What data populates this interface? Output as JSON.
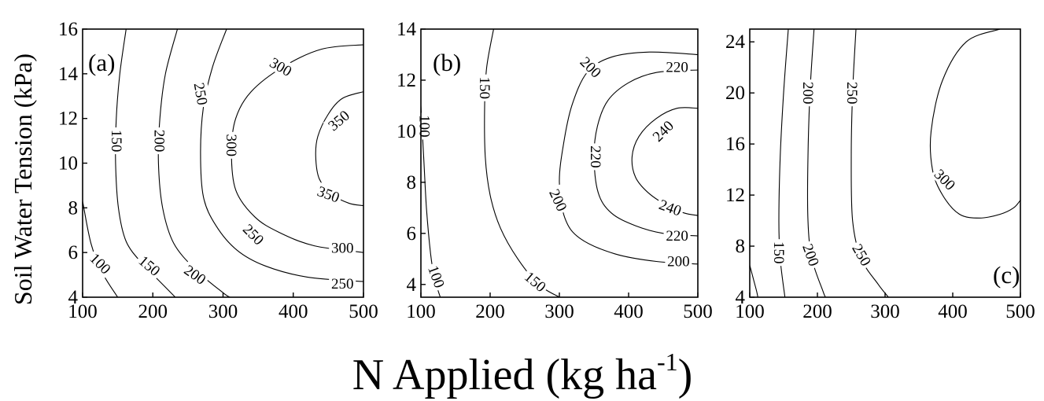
{
  "chart_data": {
    "type": "contour",
    "xlabel": "N Applied (kg ha",
    "xlabel_superscript": "-1",
    "xlabel_close": ")",
    "ylabel": "Soil Water Tension (kPa)",
    "panels": [
      {
        "panel_label": "(a)",
        "xlim": [
          100,
          500
        ],
        "ylim": [
          4,
          16
        ],
        "xticks": [
          100,
          200,
          300,
          400,
          500
        ],
        "yticks": [
          4,
          6,
          8,
          10,
          12,
          14,
          16
        ],
        "contours": [
          {
            "level": 100,
            "labels": [
              {
                "text": "100",
                "x": 125,
                "y": 5.5,
                "angle": 45
              }
            ],
            "points": [
              [
                100,
                8.3
              ],
              [
                112,
                6.4
              ],
              [
                128,
                5.1
              ],
              [
                150,
                4.0
              ]
            ]
          },
          {
            "level": 150,
            "labels": [
              {
                "text": "150",
                "x": 148,
                "y": 11.0,
                "angle": 90
              },
              {
                "text": "150",
                "x": 195,
                "y": 5.4,
                "angle": 40
              }
            ],
            "points": [
              [
                162,
                16.0
              ],
              [
                153,
                14.0
              ],
              [
                148,
                12.0
              ],
              [
                147,
                10.0
              ],
              [
                151,
                8.0
              ],
              [
                162,
                6.5
              ],
              [
                185,
                5.5
              ],
              [
                210,
                4.7
              ],
              [
                232,
                4.0
              ]
            ]
          },
          {
            "level": 200,
            "labels": [
              {
                "text": "200",
                "x": 209,
                "y": 11.0,
                "angle": 90
              },
              {
                "text": "200",
                "x": 260,
                "y": 5.0,
                "angle": 35
              }
            ],
            "points": [
              [
                235,
                16.0
              ],
              [
                218,
                14.0
              ],
              [
                210,
                12.0
              ],
              [
                208,
                10.0
              ],
              [
                214,
                8.0
              ],
              [
                230,
                6.4
              ],
              [
                262,
                5.2
              ],
              [
                300,
                4.2
              ],
              [
                310,
                4.0
              ]
            ]
          },
          {
            "level": 250,
            "labels": [
              {
                "text": "250",
                "x": 268,
                "y": 13.1,
                "angle": 80
              },
              {
                "text": "250",
                "x": 343,
                "y": 6.8,
                "angle": 45
              },
              {
                "text": "250",
                "x": 470,
                "y": 4.6,
                "angle": 0
              }
            ],
            "points": [
              [
                305,
                16.0
              ],
              [
                285,
                14.3
              ],
              [
                272,
                12.5
              ],
              [
                268,
                10.5
              ],
              [
                272,
                8.5
              ],
              [
                290,
                7.2
              ],
              [
                320,
                6.1
              ],
              [
                360,
                5.4
              ],
              [
                420,
                4.9
              ],
              [
                500,
                4.7
              ]
            ]
          },
          {
            "level": 300,
            "labels": [
              {
                "text": "300",
                "x": 382,
                "y": 14.3,
                "angle": 30
              },
              {
                "text": "300",
                "x": 312,
                "y": 10.8,
                "angle": 90
              },
              {
                "text": "300",
                "x": 470,
                "y": 6.2,
                "angle": 0
              }
            ],
            "points": [
              [
                500,
                15.3
              ],
              [
                440,
                15.1
              ],
              [
                385,
                14.3
              ],
              [
                340,
                13.2
              ],
              [
                318,
                12.0
              ],
              [
                312,
                10.5
              ],
              [
                318,
                8.8
              ],
              [
                345,
                7.6
              ],
              [
                380,
                6.9
              ],
              [
                430,
                6.3
              ],
              [
                500,
                6.0
              ]
            ]
          },
          {
            "level": 350,
            "labels": [
              {
                "text": "350",
                "x": 465,
                "y": 11.9,
                "angle": -40
              },
              {
                "text": "350",
                "x": 450,
                "y": 8.6,
                "angle": 20
              }
            ],
            "points": [
              [
                500,
                13.2
              ],
              [
                470,
                12.9
              ],
              [
                450,
                12.2
              ],
              [
                435,
                11.2
              ],
              [
                432,
                10.3
              ],
              [
                437,
                9.3
              ],
              [
                455,
                8.6
              ],
              [
                480,
                8.2
              ],
              [
                500,
                8.1
              ]
            ]
          }
        ]
      },
      {
        "panel_label": "(b)",
        "xlim": [
          100,
          500
        ],
        "ylim": [
          3.5,
          14
        ],
        "xticks": [
          100,
          200,
          300,
          400,
          500
        ],
        "yticks": [
          4,
          6,
          8,
          10,
          12,
          14
        ],
        "contours": [
          {
            "level": 100,
            "labels": [
              {
                "text": "100",
                "x": 105,
                "y": 10.2,
                "angle": 90
              },
              {
                "text": "100",
                "x": 122,
                "y": 4.3,
                "angle": 70
              }
            ],
            "points": [
              [
                100,
                11.0
              ],
              [
                104,
                9.0
              ],
              [
                108,
                7.0
              ],
              [
                114,
                5.2
              ],
              [
                120,
                4.2
              ],
              [
                128,
                3.5
              ]
            ]
          },
          {
            "level": 150,
            "labels": [
              {
                "text": "150",
                "x": 192,
                "y": 11.7,
                "angle": 90
              },
              {
                "text": "150",
                "x": 265,
                "y": 4.1,
                "angle": 40
              }
            ],
            "points": [
              [
                205,
                14.0
              ],
              [
                195,
                12.5
              ],
              [
                192,
                11.0
              ],
              [
                193,
                9.0
              ],
              [
                200,
                7.5
              ],
              [
                215,
                6.2
              ],
              [
                240,
                5.0
              ],
              [
                270,
                4.0
              ],
              [
                300,
                3.5
              ]
            ]
          },
          {
            "level": 200,
            "labels": [
              {
                "text": "200",
                "x": 345,
                "y": 12.5,
                "angle": 45
              },
              {
                "text": "200",
                "x": 298,
                "y": 7.3,
                "angle": 65
              },
              {
                "text": "200",
                "x": 472,
                "y": 4.9,
                "angle": 0
              }
            ],
            "points": [
              [
                500,
                13.0
              ],
              [
                430,
                13.1
              ],
              [
                375,
                12.9
              ],
              [
                340,
                12.3
              ],
              [
                318,
                11.0
              ],
              [
                306,
                9.5
              ],
              [
                300,
                8.0
              ],
              [
                308,
                6.6
              ],
              [
                330,
                5.8
              ],
              [
                380,
                5.2
              ],
              [
                440,
                4.9
              ],
              [
                500,
                4.8
              ]
            ]
          },
          {
            "level": 220,
            "labels": [
              {
                "text": "220",
                "x": 470,
                "y": 12.5,
                "angle": 0
              },
              {
                "text": "220",
                "x": 352,
                "y": 9.0,
                "angle": 90
              },
              {
                "text": "220",
                "x": 470,
                "y": 5.9,
                "angle": 0
              }
            ],
            "points": [
              [
                500,
                12.4
              ],
              [
                440,
                12.3
              ],
              [
                400,
                11.9
              ],
              [
                370,
                11.2
              ],
              [
                355,
                10.2
              ],
              [
                350,
                9.0
              ],
              [
                356,
                7.6
              ],
              [
                375,
                6.8
              ],
              [
                410,
                6.3
              ],
              [
                450,
                6.0
              ],
              [
                500,
                5.9
              ]
            ]
          },
          {
            "level": 240,
            "labels": [
              {
                "text": "240",
                "x": 450,
                "y": 10.0,
                "angle": -45
              },
              {
                "text": "240",
                "x": 460,
                "y": 7.0,
                "angle": 20
              }
            ],
            "points": [
              [
                500,
                10.9
              ],
              [
                470,
                10.9
              ],
              [
                440,
                10.5
              ],
              [
                415,
                9.8
              ],
              [
                405,
                9.0
              ],
              [
                410,
                8.2
              ],
              [
                428,
                7.6
              ],
              [
                455,
                7.1
              ],
              [
                480,
                6.8
              ],
              [
                500,
                6.7
              ]
            ]
          }
        ]
      },
      {
        "panel_label": "(c)",
        "xlim": [
          100,
          500
        ],
        "ylim": [
          4,
          25
        ],
        "xticks": [
          100,
          200,
          300,
          400,
          500
        ],
        "yticks": [
          4,
          8,
          12,
          16,
          20,
          24
        ],
        "contours": [
          {
            "level": 100,
            "labels": [],
            "points": [
              [
                100,
                6.5
              ],
              [
                105,
                5.5
              ],
              [
                110,
                4.5
              ],
              [
                112,
                4.0
              ]
            ]
          },
          {
            "level": 150,
            "labels": [
              {
                "text": "150",
                "x": 143,
                "y": 7.5,
                "angle": 90
              }
            ],
            "points": [
              [
                157,
                25.0
              ],
              [
                150,
                20.0
              ],
              [
                145,
                15.0
              ],
              [
                143,
                10.0
              ],
              [
                145,
                7.0
              ],
              [
                152,
                4.0
              ]
            ]
          },
          {
            "level": 200,
            "labels": [
              {
                "text": "200",
                "x": 186,
                "y": 20.0,
                "angle": 90
              },
              {
                "text": "200",
                "x": 190,
                "y": 7.3,
                "angle": 70
              }
            ],
            "points": [
              [
                195,
                25.0
              ],
              [
                189,
                20.0
              ],
              [
                186,
                15.0
              ],
              [
                186,
                10.0
              ],
              [
                192,
                7.0
              ],
              [
                208,
                4.5
              ],
              [
                212,
                4.0
              ]
            ]
          },
          {
            "level": 250,
            "labels": [
              {
                "text": "250",
                "x": 251,
                "y": 20.0,
                "angle": 90
              },
              {
                "text": "250",
                "x": 265,
                "y": 7.3,
                "angle": 60
              }
            ],
            "points": [
              [
                257,
                25.0
              ],
              [
                252,
                20.0
              ],
              [
                250,
                15.0
              ],
              [
                252,
                10.0
              ],
              [
                265,
                7.0
              ],
              [
                290,
                5.0
              ],
              [
                305,
                4.0
              ]
            ]
          },
          {
            "level": 300,
            "labels": [
              {
                "text": "300",
                "x": 388,
                "y": 13.2,
                "angle": 45
              }
            ],
            "points": [
              [
                470,
                25.0
              ],
              [
                420,
                24.0
              ],
              [
                385,
                21.0
              ],
              [
                368,
                17.0
              ],
              [
                370,
                14.0
              ],
              [
                385,
                12.0
              ],
              [
                410,
                10.5
              ],
              [
                440,
                10.2
              ],
              [
                470,
                10.5
              ],
              [
                490,
                11.0
              ],
              [
                500,
                11.6
              ]
            ]
          }
        ]
      }
    ]
  }
}
